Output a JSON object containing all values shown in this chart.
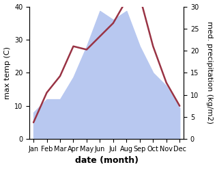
{
  "months": [
    "Jan",
    "Feb",
    "Mar",
    "Apr",
    "May",
    "Jun",
    "Jul",
    "Aug",
    "Sep",
    "Oct",
    "Nov",
    "Dec"
  ],
  "month_indices": [
    0,
    1,
    2,
    3,
    4,
    5,
    6,
    7,
    8,
    9,
    10,
    11
  ],
  "temperature": [
    5,
    14,
    19,
    28,
    27,
    31,
    35,
    42,
    43,
    28,
    17,
    10
  ],
  "precipitation_right": [
    6,
    9,
    9,
    14,
    21,
    29,
    27,
    29,
    21,
    15,
    12,
    7
  ],
  "temp_ylim": [
    0,
    40
  ],
  "precip_ylim": [
    0,
    30
  ],
  "temp_color": "#993344",
  "precip_fill_color": "#b8c8f0",
  "precip_edge_color": "#b8c8f0",
  "xlabel": "date (month)",
  "ylabel_left": "max temp (C)",
  "ylabel_right": "med. precipitation (kg/m2)",
  "temp_lw": 1.8,
  "ylabel_fontsize": 8,
  "xlabel_fontsize": 9,
  "tick_fontsize": 7
}
